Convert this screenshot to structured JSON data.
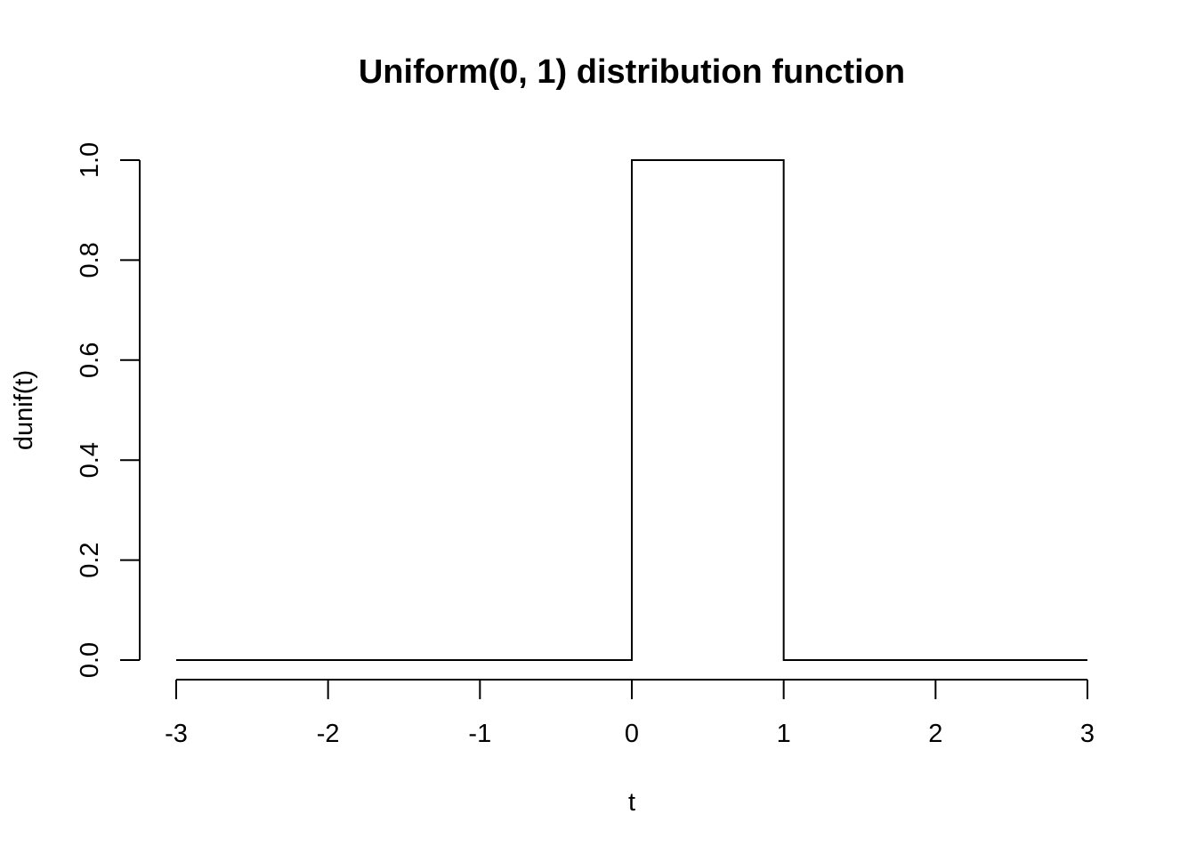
{
  "chart_data": {
    "type": "line",
    "title": "Uniform(0, 1) distribution function",
    "xlabel": "t",
    "ylabel": "dunif(t)",
    "xlim": [
      -3,
      3
    ],
    "ylim": [
      0,
      1
    ],
    "x_ticks": [
      -3,
      -2,
      -1,
      0,
      1,
      2,
      3
    ],
    "x_tick_labels": [
      "-3",
      "-2",
      "-1",
      "0",
      "1",
      "2",
      "3"
    ],
    "y_ticks": [
      0,
      0.2,
      0.4,
      0.6,
      0.8,
      1.0
    ],
    "y_tick_labels": [
      "0.0",
      "0.2",
      "0.4",
      "0.6",
      "0.8",
      "1.0"
    ],
    "grid": false,
    "series": [
      {
        "x": [
          -3,
          0,
          0,
          1,
          1,
          3
        ],
        "y": [
          0,
          0,
          1,
          1,
          0,
          0
        ],
        "color": "#000000"
      }
    ]
  }
}
